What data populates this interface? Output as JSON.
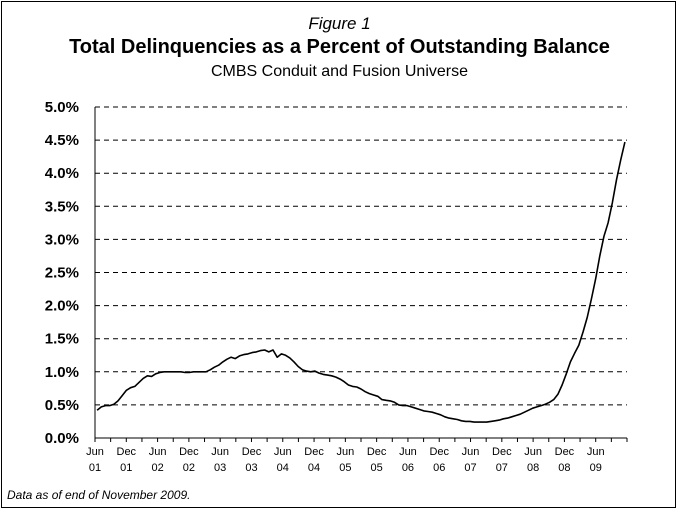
{
  "figure_label": "Figure 1",
  "footnote": "Data as of end of November 2009.",
  "chart_data": {
    "type": "line",
    "title": "Total Delinquencies as a Percent of Outstanding Balance",
    "subtitle": "CMBS Conduit and Fusion Universe",
    "xlabel": "",
    "ylabel": "",
    "ylim": [
      0,
      5
    ],
    "y_ticks": [
      "0.0%",
      "0.5%",
      "1.0%",
      "1.5%",
      "2.0%",
      "2.5%",
      "3.0%",
      "3.5%",
      "4.0%",
      "4.5%",
      "5.0%"
    ],
    "x_ticks": [
      {
        "top": "Jun",
        "bottom": "01"
      },
      {
        "top": "Dec",
        "bottom": "01"
      },
      {
        "top": "Jun",
        "bottom": "02"
      },
      {
        "top": "Dec",
        "bottom": "02"
      },
      {
        "top": "Jun",
        "bottom": "03"
      },
      {
        "top": "Dec",
        "bottom": "03"
      },
      {
        "top": "Jun",
        "bottom": "04"
      },
      {
        "top": "Dec",
        "bottom": "04"
      },
      {
        "top": "Jun",
        "bottom": "05"
      },
      {
        "top": "Dec",
        "bottom": "05"
      },
      {
        "top": "Jun",
        "bottom": "06"
      },
      {
        "top": "Dec",
        "bottom": "06"
      },
      {
        "top": "Jun",
        "bottom": "07"
      },
      {
        "top": "Dec",
        "bottom": "07"
      },
      {
        "top": "Jun",
        "bottom": "08"
      },
      {
        "top": "Dec",
        "bottom": "08"
      },
      {
        "top": "Jun",
        "bottom": "09"
      }
    ],
    "x_start": "Jun 2001",
    "grid": "horizontal dashed",
    "line_color": "#000000",
    "series": [
      {
        "values": [
          0.42,
          0.47,
          0.49,
          0.49,
          0.51,
          0.56,
          0.64,
          0.72,
          0.76,
          0.78,
          0.84,
          0.9,
          0.94,
          0.93,
          0.97,
          0.99,
          1.0,
          1.0,
          1.0,
          1.0,
          1.0,
          0.99,
          0.99,
          1.0,
          1.0,
          1.0,
          1.0,
          1.03,
          1.07,
          1.1,
          1.15,
          1.19,
          1.22,
          1.2,
          1.24,
          1.26,
          1.27,
          1.29,
          1.3,
          1.32,
          1.33,
          1.3,
          1.33,
          1.22,
          1.27,
          1.25,
          1.21,
          1.15,
          1.08,
          1.03,
          1.01,
          1.0,
          1.01,
          0.98,
          0.96,
          0.95,
          0.94,
          0.92,
          0.89,
          0.85,
          0.8,
          0.78,
          0.77,
          0.74,
          0.7,
          0.67,
          0.65,
          0.63,
          0.58,
          0.57,
          0.56,
          0.54,
          0.5,
          0.49,
          0.49,
          0.47,
          0.45,
          0.43,
          0.41,
          0.4,
          0.39,
          0.37,
          0.35,
          0.32,
          0.3,
          0.29,
          0.28,
          0.26,
          0.25,
          0.25,
          0.24,
          0.24,
          0.24,
          0.24,
          0.25,
          0.26,
          0.27,
          0.29,
          0.3,
          0.32,
          0.34,
          0.36,
          0.39,
          0.42,
          0.45,
          0.47,
          0.49,
          0.51,
          0.54,
          0.58,
          0.66,
          0.8,
          0.97,
          1.15,
          1.28,
          1.4,
          1.6,
          1.82,
          2.1,
          2.4,
          2.75,
          3.05,
          3.25,
          3.55,
          3.9,
          4.2,
          4.47
        ]
      }
    ]
  }
}
